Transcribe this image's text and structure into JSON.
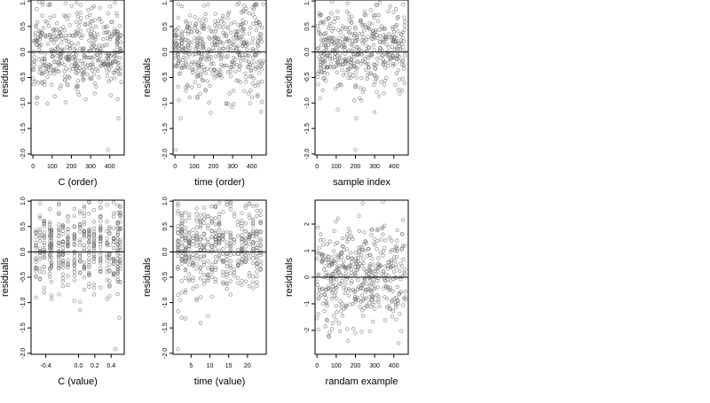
{
  "figure": {
    "background": "#ffffff",
    "point_color": "#6b6b6b",
    "line_color": "#000000"
  },
  "chart_data": [
    {
      "type": "scatter",
      "xlabel": "C (order)",
      "ylabel": "residuals",
      "x_ticks": [
        0,
        100,
        200,
        300,
        400
      ],
      "xlim": [
        -10,
        475
      ],
      "y_ticks": [
        1.0,
        0.5,
        0.0,
        -0.5,
        -1.0,
        -1.5,
        -2.0
      ],
      "y_tick_labels": [
        "1.0",
        "0.5",
        "0.0",
        "-0.5",
        "-1.0",
        "-1.5",
        "-2.0"
      ],
      "ylim": [
        -2.02,
        1.02
      ],
      "hline": 0,
      "n_points": 460,
      "point_range": [
        0,
        460
      ],
      "value_mean": 0.05,
      "value_sd": 0.42,
      "notable_points": [
        {
          "x": 390,
          "y": -1.92
        },
        {
          "x": 445,
          "y": -1.3
        },
        {
          "x": 20,
          "y": -0.9
        }
      ],
      "seed": 11
    },
    {
      "type": "scatter",
      "xlabel": "time (order)",
      "ylabel": "residuals",
      "x_ticks": [
        0,
        100,
        200,
        300,
        400
      ],
      "xlim": [
        -10,
        475
      ],
      "y_ticks": [
        1.0,
        0.5,
        0.0,
        -0.5,
        -1.0,
        -1.5,
        -2.0
      ],
      "y_tick_labels": [
        "1.0",
        "0.5",
        "0.0",
        "-0.5",
        "-1.0",
        "-1.5",
        "-2.0"
      ],
      "ylim": [
        -2.02,
        1.02
      ],
      "hline": 0,
      "n_points": 460,
      "point_range": [
        0,
        460
      ],
      "value_mean": 0.05,
      "value_sd": 0.42,
      "notable_points": [
        {
          "x": 5,
          "y": -1.92
        },
        {
          "x": 30,
          "y": -1.3
        },
        {
          "x": 20,
          "y": -0.95
        }
      ],
      "seed": 23
    },
    {
      "type": "scatter",
      "xlabel": "sample index",
      "ylabel": "residuals",
      "x_ticks": [
        0,
        100,
        200,
        300,
        400
      ],
      "xlim": [
        -10,
        475
      ],
      "y_ticks": [
        1.0,
        0.5,
        0.0,
        -0.5,
        -1.0,
        -1.5,
        -2.0
      ],
      "y_tick_labels": [
        "1.0",
        "0.5",
        "0.0",
        "-0.5",
        "-1.0",
        "-1.5",
        "-2.0"
      ],
      "ylim": [
        -2.02,
        1.02
      ],
      "hline": 0,
      "n_points": 460,
      "point_range": [
        0,
        460
      ],
      "value_mean": 0.05,
      "value_sd": 0.42,
      "notable_points": [
        {
          "x": 200,
          "y": -1.92
        },
        {
          "x": 205,
          "y": -1.3
        },
        {
          "x": 230,
          "y": -0.95
        }
      ],
      "seed": 37
    },
    {
      "type": "scatter",
      "xlabel": "C (value)",
      "ylabel": "residuals",
      "x_ticks": [
        -0.4,
        0.0,
        0.2,
        0.4
      ],
      "x_tick_labels": [
        "-0.4",
        "0.0",
        "0.2",
        "0.4"
      ],
      "xlim": [
        -0.58,
        0.56
      ],
      "y_ticks": [
        1.0,
        0.5,
        0.0,
        -0.5,
        -1.0,
        -1.5,
        -2.0
      ],
      "y_tick_labels": [
        "1.0",
        "0.5",
        "0.0",
        "-0.5",
        "-1.0",
        "-1.5",
        "-2.0"
      ],
      "ylim": [
        -2.02,
        1.02
      ],
      "hline": 0,
      "n_points": 460,
      "value_mean": 0.05,
      "value_sd": 0.42,
      "x_columns": [
        -0.52,
        -0.47,
        -0.42,
        -0.35,
        -0.33,
        -0.24,
        -0.19,
        -0.13,
        -0.05,
        0.02,
        0.07,
        0.13,
        0.19,
        0.27,
        0.35,
        0.38,
        0.43,
        0.48,
        0.51
      ],
      "notable_points": [
        {
          "x": 0.45,
          "y": -1.92
        },
        {
          "x": 0.5,
          "y": -1.3
        },
        {
          "x": -0.52,
          "y": -0.9
        }
      ],
      "seed": 51
    },
    {
      "type": "scatter",
      "xlabel": "time (value)",
      "ylabel": "residuals",
      "x_ticks": [
        5,
        10,
        15,
        20
      ],
      "xlim": [
        0.2,
        25
      ],
      "y_ticks": [
        1.0,
        0.5,
        0.0,
        -0.5,
        -1.0,
        -1.5,
        -2.0
      ],
      "y_tick_labels": [
        "1.0",
        "0.5",
        "0.0",
        "-0.5",
        "-1.0",
        "-1.5",
        "-2.0"
      ],
      "ylim": [
        -2.02,
        1.02
      ],
      "hline": 0,
      "n_points": 460,
      "value_mean": 0.05,
      "value_sd": 0.42,
      "x_columns": [
        1.5,
        2.5,
        3.5,
        4.5,
        5.5,
        6.5,
        7.5,
        8.5,
        9.5,
        10.5,
        11.5,
        12.5,
        13.5,
        14.5,
        15.5,
        16.5,
        17.5,
        18.5,
        19.5,
        20.5,
        21.5,
        22.5,
        23.5
      ],
      "notable_points": [
        {
          "x": 1.5,
          "y": -1.92
        },
        {
          "x": 2.5,
          "y": -1.3
        },
        {
          "x": 2.0,
          "y": -0.95
        }
      ],
      "seed": 67
    },
    {
      "type": "scatter",
      "xlabel": "randam example",
      "ylabel": "residuals",
      "x_ticks": [
        0,
        100,
        200,
        300,
        400
      ],
      "xlim": [
        -10,
        475
      ],
      "y_ticks": [
        2,
        1,
        0,
        -1,
        -2
      ],
      "y_tick_labels": [
        "2",
        "1",
        "0",
        "-1",
        "-2"
      ],
      "ylim": [
        -2.9,
        2.9
      ],
      "hline": 0,
      "n_points": 460,
      "point_range": [
        0,
        460
      ],
      "value_mean": 0.0,
      "value_sd": 1.0,
      "notable_points": [],
      "seed": 89
    }
  ]
}
